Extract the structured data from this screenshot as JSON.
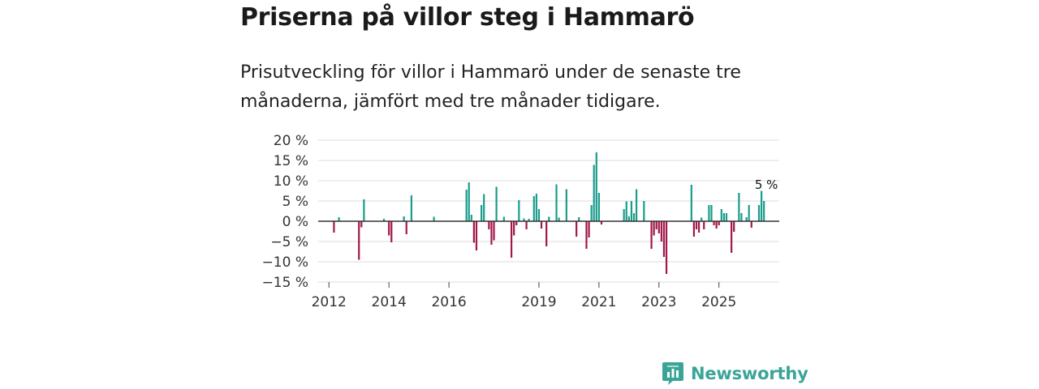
{
  "header": {
    "title": "Priserna på villor steg i Hammarö",
    "subtitle": "Prisutveckling för villor i Hammarö under de senaste tre månaderna, jämfört med tre månader tidigare."
  },
  "brand": {
    "name": "Newsworthy",
    "icon": "newsworthy-logo-icon",
    "color": "#3aa597"
  },
  "colors": {
    "positive": "#1a9c8c",
    "negative": "#a3174a",
    "zero_line": "#333333",
    "grid": "#dddddd"
  },
  "chart_data": {
    "type": "bar",
    "title": "Priserna på villor steg i Hammarö",
    "xlabel": "",
    "ylabel": "",
    "ylim": [
      -15,
      20
    ],
    "y_ticks": [
      20,
      15,
      10,
      5,
      0,
      -5,
      -10,
      -15
    ],
    "y_tick_labels": [
      "20 %",
      "15 %",
      "10 %",
      "5 %",
      "0 %",
      "−5 %",
      "−10 %",
      "−15 %"
    ],
    "x_ticks": [
      2012,
      2014,
      2016,
      2019,
      2021,
      2023,
      2025
    ],
    "x_tick_labels": [
      "2012",
      "2014",
      "2016",
      "2019",
      "2021",
      "2023",
      "2025"
    ],
    "start": "2011-10",
    "frequency": "monthly",
    "values": [
      0,
      0,
      0,
      0,
      0,
      -2.8,
      0,
      1,
      0,
      0,
      0,
      0,
      0,
      0,
      0,
      -9.5,
      -1.5,
      5.4,
      0,
      0,
      0,
      0,
      0,
      0,
      0,
      0.6,
      0,
      -3.5,
      -5.2,
      0,
      0,
      0,
      0,
      1.2,
      -3.2,
      0,
      6.4,
      0,
      0,
      0,
      0,
      0,
      0,
      0,
      0,
      1.1,
      0,
      0,
      0,
      0,
      0,
      0,
      0,
      0,
      0,
      0,
      0,
      0,
      7.8,
      9.6,
      1.6,
      -5.3,
      -7.2,
      0,
      4,
      6.7,
      0,
      -2,
      -5.8,
      -4.7,
      8.5,
      0,
      0,
      1.1,
      0,
      0,
      -9,
      -3.5,
      -1,
      5.2,
      0,
      0.7,
      -2,
      0.6,
      0,
      6.2,
      6.8,
      3,
      -1.8,
      0,
      -6.2,
      1.1,
      0,
      0,
      9.1,
      0.9,
      0,
      0,
      7.9,
      0,
      0,
      0,
      -3.8,
      1,
      0,
      0,
      -6.8,
      -4,
      4,
      13.9,
      17,
      7,
      -0.8,
      0,
      0,
      0,
      0,
      0,
      0,
      0,
      0,
      3,
      4.9,
      1.2,
      5,
      2,
      7.9,
      0,
      0,
      5,
      0,
      0,
      -6.8,
      -3.5,
      -2,
      -3,
      -5,
      -8.8,
      -13,
      0,
      0,
      0,
      0,
      0,
      0,
      0,
      0,
      0,
      9,
      -3.8,
      -2,
      -2.8,
      0.9,
      -2,
      0,
      4,
      4,
      -1,
      -1.8,
      -1,
      3,
      2,
      2,
      0,
      -7.8,
      -2.6,
      0,
      7,
      2,
      0,
      1,
      4,
      -1.6,
      0,
      0,
      4,
      7.5,
      5
    ],
    "annotation": {
      "text": "5 %",
      "target": "last"
    }
  }
}
